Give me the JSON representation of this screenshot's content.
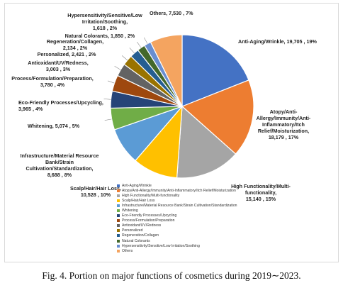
{
  "chart_data": {
    "type": "pie",
    "title": "",
    "caption": "Fig. 4. Portion on major functions of cosmetics during 2019∼2023.",
    "legend_position": "bottom",
    "slices": [
      {
        "label": "Anti-Aging/Wrinkle",
        "data_label": "Anti-Aging/Wrinkle, 19,705 , 19%",
        "value": 19705,
        "percent": 19,
        "color": "#4472c4"
      },
      {
        "label": "Atopy/Anti-Allergy/Immunity/Anti-Inflammatory/Itch Relief/Moisturization",
        "data_label": "Atopy/Anti-Allergy/Immunity/Anti-Inflammatory/Itch Relief/Moisturization, 18,179 , 17%",
        "value": 18179,
        "percent": 17,
        "color": "#ed7d31"
      },
      {
        "label": "High Functionality/Multi-functionality",
        "data_label": "High Functionality/Multi-functionality, 15,140 , 15%",
        "value": 15140,
        "percent": 15,
        "color": "#a5a5a5"
      },
      {
        "label": "Scalp/Hair/Hair Loss",
        "data_label": "Scalp/Hair/Hair Loss, 10,528 , 10%",
        "value": 10528,
        "percent": 10,
        "color": "#ffc000"
      },
      {
        "label": "Infrastructure/Material Resource Bank/Strain Cultivation/Standardization",
        "data_label": "Infrastructure/Material Resource Bank/Strain Cultivation/Standardization, 8,688 , 8%",
        "value": 8688,
        "percent": 8,
        "color": "#5b9bd5"
      },
      {
        "label": "Whitening",
        "data_label": "Whitening, 5,074 , 5%",
        "value": 5074,
        "percent": 5,
        "color": "#70ad47"
      },
      {
        "label": "Eco-Friendly Processes/Upcycling",
        "data_label": "Eco-Friendly Processes/Upcycling, 3,965 , 4%",
        "value": 3965,
        "percent": 4,
        "color": "#264478"
      },
      {
        "label": "Process/Formulation/Preparation",
        "data_label": "Process/Formulation/Preparation, 3,780 , 4%",
        "value": 3780,
        "percent": 4,
        "color": "#9e480e"
      },
      {
        "label": "Antioxidant/UV/Redness",
        "data_label": "Antioxidant/UV/Redness, 3,003 , 3%",
        "value": 3003,
        "percent": 3,
        "color": "#636363"
      },
      {
        "label": "Personalized",
        "data_label": "Personalized, 2,421 , 2%",
        "value": 2421,
        "percent": 2,
        "color": "#997300"
      },
      {
        "label": "Regeneration/Collagen",
        "data_label": "Regeneration/Collagen, 2,134 , 2%",
        "value": 2134,
        "percent": 2,
        "color": "#255e91"
      },
      {
        "label": "Natural Colorants",
        "data_label": "Natural Colorants, 1,850 , 2%",
        "value": 1850,
        "percent": 2,
        "color": "#43682b"
      },
      {
        "label": "Hypersensitivity/Sensitive/Low Irritation/Soothing",
        "data_label": "Hypersensitivity/Sensitive/Low Irritation/Soothing, 1,618 , 2%",
        "value": 1618,
        "percent": 2,
        "color": "#698ed0"
      },
      {
        "label": "Others",
        "data_label": "Others, 7,530 , 7%",
        "value": 7530,
        "percent": 7,
        "color": "#f4a460"
      }
    ]
  }
}
